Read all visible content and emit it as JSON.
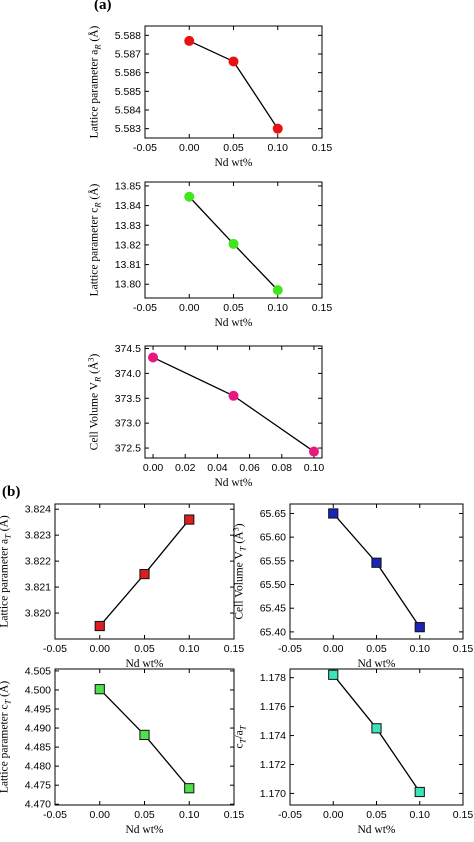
{
  "figure": {
    "label_a": "(a)",
    "label_b": "(b)"
  },
  "chart_data": [
    {
      "id": "a1",
      "type": "line",
      "xlabel": "Nd wt%",
      "ylabel": "Lattice parameter a_R (Å)",
      "xlim": [
        -0.05,
        0.15
      ],
      "xticks": [
        -0.05,
        0.0,
        0.05,
        0.1,
        0.15
      ],
      "xtick_labels": [
        "-0.05",
        "0.00",
        "0.05",
        "0.10",
        "0.15"
      ],
      "ylim": [
        5.5825,
        5.5885
      ],
      "yticks": [
        5.583,
        5.584,
        5.585,
        5.586,
        5.587,
        5.588
      ],
      "ytick_labels": [
        "5.583",
        "5.584",
        "5.585",
        "5.586",
        "5.587",
        "5.588"
      ],
      "marker": "circle",
      "color": "#e81212",
      "x": [
        0.0,
        0.05,
        0.1
      ],
      "y": [
        5.5877,
        5.5866,
        5.583
      ]
    },
    {
      "id": "a2",
      "type": "line",
      "xlabel": "Nd wt%",
      "ylabel": "Lattice parameter c_R (Å)",
      "xlim": [
        -0.05,
        0.15
      ],
      "xticks": [
        -0.05,
        0.0,
        0.05,
        0.1,
        0.15
      ],
      "xtick_labels": [
        "-0.05",
        "0.00",
        "0.05",
        "0.10",
        "0.15"
      ],
      "ylim": [
        13.793,
        13.852
      ],
      "yticks": [
        13.8,
        13.81,
        13.82,
        13.83,
        13.84,
        13.85
      ],
      "ytick_labels": [
        "13.80",
        "13.81",
        "13.82",
        "13.83",
        "13.84",
        "13.85"
      ],
      "marker": "circle",
      "color": "#3ee61c",
      "x": [
        0.0,
        0.05,
        0.1
      ],
      "y": [
        13.8445,
        13.8205,
        13.797
      ]
    },
    {
      "id": "a3",
      "type": "line",
      "xlabel": "Nd wt%",
      "ylabel": "Cell Volume V_R (Å^3)",
      "xlim": [
        -0.005,
        0.105
      ],
      "xticks": [
        0.0,
        0.02,
        0.04,
        0.06,
        0.08,
        0.1
      ],
      "xtick_labels": [
        "0.00",
        "0.02",
        "0.04",
        "0.06",
        "0.08",
        "0.10"
      ],
      "ylim": [
        372.3,
        374.55
      ],
      "yticks": [
        372.5,
        373.0,
        373.5,
        374.0,
        374.5
      ],
      "ytick_labels": [
        "372.5",
        "373.0",
        "373.5",
        "374.0",
        "374.5"
      ],
      "marker": "circle",
      "color": "#e5197f",
      "x": [
        0.0,
        0.05,
        0.1
      ],
      "y": [
        374.32,
        373.55,
        372.43
      ]
    },
    {
      "id": "b1",
      "type": "line",
      "xlabel": "Nd wt%",
      "ylabel": "Lattice parameter a_T (Å)",
      "xlim": [
        -0.05,
        0.15
      ],
      "xticks": [
        -0.05,
        0.0,
        0.05,
        0.1,
        0.15
      ],
      "xtick_labels": [
        "-0.05",
        "0.00",
        "0.05",
        "0.10",
        "0.15"
      ],
      "ylim": [
        3.819,
        3.8242
      ],
      "yticks": [
        3.82,
        3.821,
        3.822,
        3.823,
        3.824
      ],
      "ytick_labels": [
        "3.820",
        "3.821",
        "3.822",
        "3.823",
        "3.824"
      ],
      "marker": "square",
      "color": "#d91f1f",
      "x": [
        0.0,
        0.05,
        0.1
      ],
      "y": [
        3.8195,
        3.8215,
        3.8236
      ]
    },
    {
      "id": "b2",
      "type": "line",
      "xlabel": "Nd wt%",
      "ylabel": "Cell Volume V_T (Å^3)",
      "xlim": [
        -0.05,
        0.15
      ],
      "xticks": [
        -0.05,
        0.0,
        0.05,
        0.1,
        0.15
      ],
      "xtick_labels": [
        "-0.05",
        "0.00",
        "0.05",
        "0.10",
        "0.15"
      ],
      "ylim": [
        65.385,
        65.67
      ],
      "yticks": [
        65.4,
        65.45,
        65.5,
        65.55,
        65.6,
        65.65
      ],
      "ytick_labels": [
        "65.40",
        "65.45",
        "65.50",
        "65.55",
        "65.60",
        "65.65"
      ],
      "marker": "square",
      "color": "#1a25b8",
      "x": [
        0.0,
        0.05,
        0.1
      ],
      "y": [
        65.65,
        65.546,
        65.41
      ]
    },
    {
      "id": "b3",
      "type": "line",
      "xlabel": "Nd wt%",
      "ylabel": "Lattice parameter c_T (Å)",
      "xlim": [
        -0.05,
        0.15
      ],
      "xticks": [
        -0.05,
        0.0,
        0.05,
        0.1,
        0.15
      ],
      "xtick_labels": [
        "-0.05",
        "0.00",
        "0.05",
        "0.10",
        "0.15"
      ],
      "ylim": [
        4.4698,
        4.5055
      ],
      "yticks": [
        4.47,
        4.475,
        4.48,
        4.485,
        4.49,
        4.495,
        4.5,
        4.505
      ],
      "ytick_labels": [
        "4.470",
        "4.475",
        "4.480",
        "4.485",
        "4.490",
        "4.495",
        "4.500",
        "4.505"
      ],
      "marker": "square",
      "color": "#4fe04a",
      "x": [
        0.0,
        0.05,
        0.1
      ],
      "y": [
        4.5002,
        4.4882,
        4.4742
      ]
    },
    {
      "id": "b4",
      "type": "line",
      "xlabel": "Nd wt%",
      "ylabel": "c_T/a_T",
      "xlim": [
        -0.05,
        0.15
      ],
      "xticks": [
        -0.05,
        0.0,
        0.05,
        0.1,
        0.15
      ],
      "xtick_labels": [
        "-0.05",
        "0.00",
        "0.05",
        "0.10",
        "0.15"
      ],
      "ylim": [
        1.1692,
        1.1786
      ],
      "yticks": [
        1.17,
        1.172,
        1.174,
        1.176,
        1.178
      ],
      "ytick_labels": [
        "1.170",
        "1.172",
        "1.174",
        "1.176",
        "1.178"
      ],
      "marker": "square",
      "color": "#3de3b5",
      "x": [
        0.0,
        0.05,
        0.1
      ],
      "y": [
        1.1782,
        1.1745,
        1.1701
      ]
    }
  ]
}
